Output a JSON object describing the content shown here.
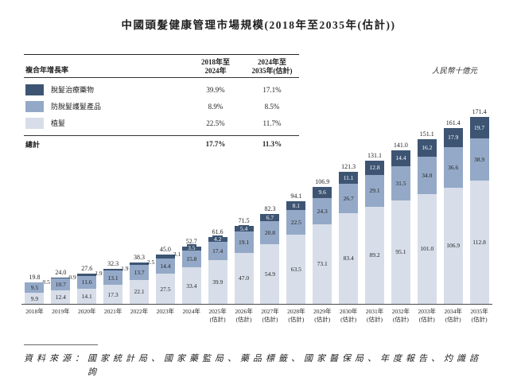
{
  "title": "中國頭髮健康管理市場規模(2018年至2035年(估計))",
  "unit_note": "人民幣十億元",
  "legend_table": {
    "header": {
      "label": "複合年增長率",
      "col1": "2018年至\n2024年",
      "col2": "2024年至\n2035年(估計)"
    },
    "rows": [
      {
        "label": "脫髮治療藥物",
        "cagr_2018_2024": "39.9%",
        "cagr_2024_2035": "17.1%",
        "color": "#3d5573"
      },
      {
        "label": "防脫髮護髮產品",
        "cagr_2018_2024": "8.9%",
        "cagr_2024_2035": "8.5%",
        "color": "#94a9c7"
      },
      {
        "label": "植髮",
        "cagr_2018_2024": "22.5%",
        "cagr_2024_2035": "11.7%",
        "color": "#d7dee9"
      }
    ],
    "total": {
      "label": "總計",
      "cagr_2018_2024": "17.7%",
      "cagr_2024_2035": "11.3%"
    }
  },
  "chart_data": {
    "type": "bar",
    "stacked": true,
    "title": "中國頭髮健康管理市場規模(2018年至2035年(估計))",
    "ylabel": "人民幣十億元",
    "ylim": [
      0,
      180
    ],
    "grid": false,
    "legend_position": "top-left-table",
    "categories": [
      "2018年",
      "2019年",
      "2020年",
      "2021年",
      "2022年",
      "2023年",
      "2024年",
      "2025年(估計)",
      "2026年(估計)",
      "2027年(估計)",
      "2028年(估計)",
      "2029年(估計)",
      "2030年(估計)",
      "2031年(估計)",
      "2032年(估計)",
      "2033年(估計)",
      "2034年(估計)",
      "2035年(估計)"
    ],
    "series": [
      {
        "name": "植髮",
        "key": "hair-transplant",
        "color": "#d7dee9",
        "values": [
          9.9,
          12.4,
          14.1,
          17.3,
          22.1,
          27.5,
          33.4,
          39.9,
          47.0,
          54.9,
          63.5,
          73.1,
          83.4,
          89.2,
          95.1,
          101.0,
          106.9,
          112.8
        ]
      },
      {
        "name": "防脫髮護髮產品",
        "key": "anti-hair-loss-care-products",
        "color": "#94a9c7",
        "values": [
          9.5,
          10.7,
          11.6,
          13.1,
          13.7,
          14.4,
          15.8,
          17.4,
          19.1,
          20.8,
          22.5,
          24.3,
          26.7,
          29.1,
          31.5,
          34.0,
          36.6,
          38.9
        ]
      },
      {
        "name": "脫髮治療藥物",
        "key": "hair-loss-treatment-drugs",
        "color": "#3d5573",
        "values": [
          0.5,
          0.9,
          1.9,
          1.9,
          2.5,
          3.1,
          3.5,
          4.2,
          5.4,
          6.7,
          8.1,
          9.6,
          11.1,
          12.8,
          14.4,
          16.2,
          17.9,
          19.7
        ]
      }
    ],
    "totals": [
      19.8,
      24.0,
      27.6,
      32.3,
      38.3,
      45.0,
      52.7,
      61.6,
      71.5,
      82.3,
      94.1,
      106.9,
      121.3,
      131.1,
      141.0,
      151.1,
      161.4,
      171.4
    ]
  },
  "source": {
    "label": "資料來源：",
    "text": "國家統計局、國家藥監局、藥品標籤、國家醫保局、年度報告、灼識諮詢"
  }
}
